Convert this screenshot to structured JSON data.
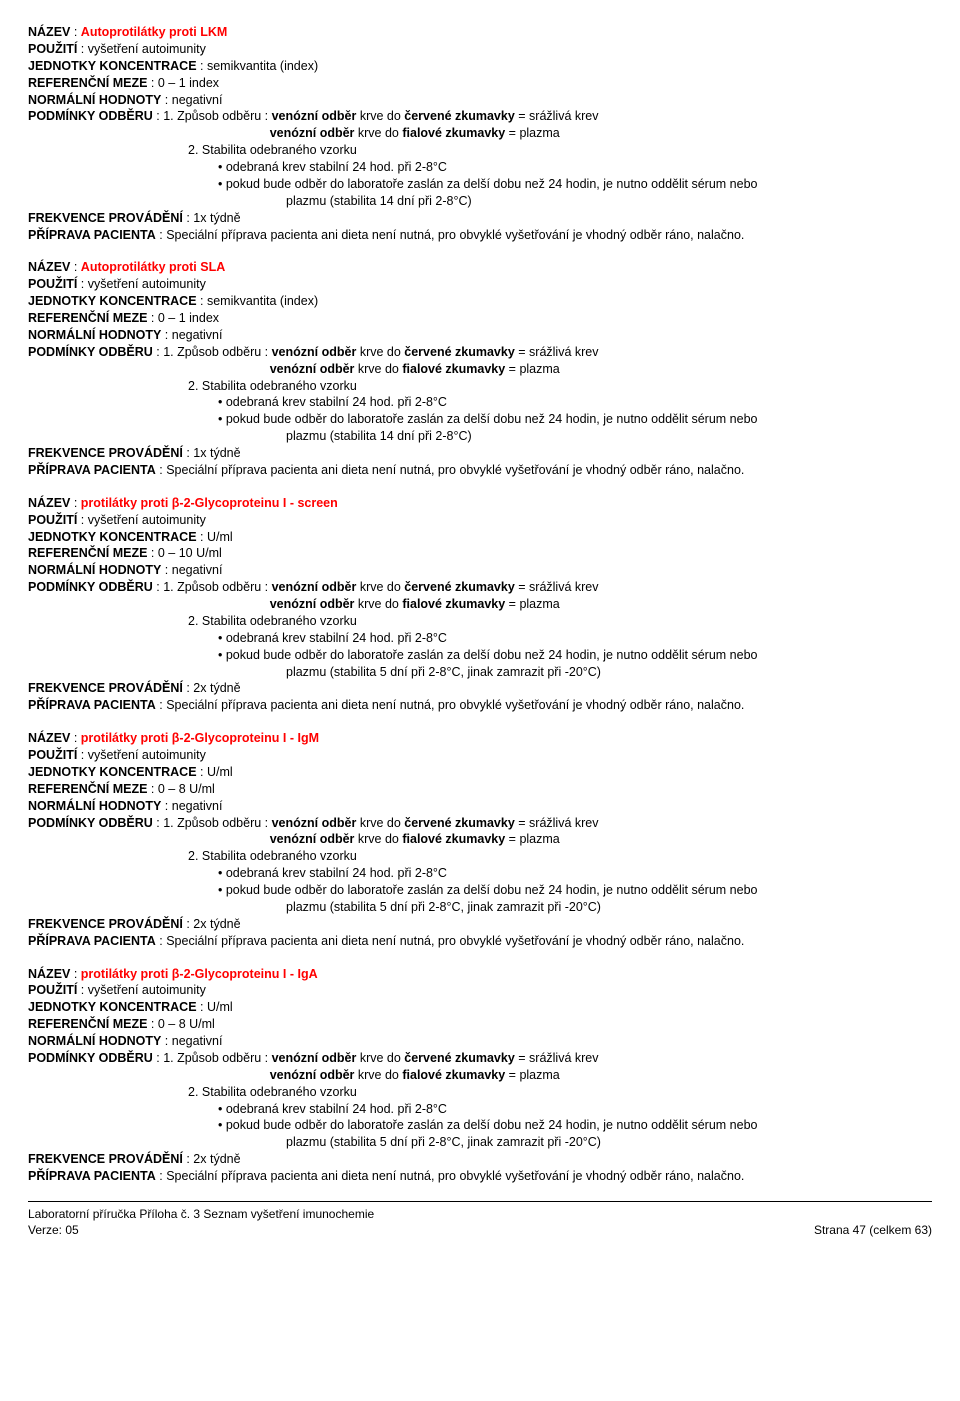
{
  "labels": {
    "nazev": "NÁZEV",
    "pouziti": "POUŽITÍ",
    "jednotky": "JEDNOTKY KONCENTRACE",
    "meze": "REFERENČNÍ MEZE",
    "hodnoty": "NORMÁLNÍ HODNOTY",
    "podminky": "PODMÍNKY ODBĚRU",
    "frekvence": "FREKVENCE PROVÁDĚNÍ",
    "priprava": "PŘÍPRAVA PACIENTA"
  },
  "shared": {
    "pouziti": "vyšetření  autoimunity",
    "hodnoty": "negativní",
    "odb_prefix": "1. Způsob odběru  :",
    "odb1_a": "venózní  odběr",
    "odb1_b": "krve do",
    "odb1_c": "červené zkumavky",
    "odb1_d": "= srážlivá krev",
    "odb2_a": "venózní  odběr",
    "odb2_b": "krve do",
    "odb2_c": "fialové  zkumavky",
    "odb2_d": "= plazma",
    "stab": "2. Stabilita odebraného vzorku",
    "stab1": "odebraná krev stabilní 24 hod. při 2-8°C",
    "stab2a": "pokud bude odběr do laboratoře zaslán za delší dobu než 24 hodin, je nutno oddělit sérum nebo",
    "stab2b_14": "plazmu (stabilita 14 dní při 2-8°C)",
    "stab2b_5": "plazmu (stabilita 5 dní při 2-8°C, jinak zamrazit při -20°C)",
    "priprava": "Speciální příprava pacienta ani dieta není nutná, pro obvyklé vyšetřování je vhodný odběr ráno, nalačno."
  },
  "entries": [
    {
      "title": "Autoprotilátky proti LKM",
      "jednotky": "semikvantita (index)",
      "meze": "0 – 1 index",
      "frekvence": "1x týdně",
      "stab2b": "stab2b_14"
    },
    {
      "title": "Autoprotilátky proti SLA",
      "jednotky": "semikvantita (index)",
      "meze": "0 – 1 index",
      "frekvence": "1x týdně",
      "stab2b": "stab2b_14"
    },
    {
      "title": "protilátky proti β-2-Glycoproteinu I  -  screen",
      "jednotky": "U/ml",
      "meze": "0 – 10 U/ml",
      "frekvence": "2x týdně",
      "stab2b": "stab2b_5"
    },
    {
      "title": "protilátky proti β-2-Glycoproteinu I  -  IgM",
      "jednotky": "U/ml",
      "meze": "0 – 8 U/ml",
      "frekvence": "2x týdně",
      "stab2b": "stab2b_5"
    },
    {
      "title": "protilátky proti β-2-Glycoproteinu I  -  IgA",
      "jednotky": "U/ml",
      "meze": "0 – 8 U/ml",
      "frekvence": "2x týdně",
      "stab2b": "stab2b_5"
    }
  ],
  "footer": {
    "left1": "Laboratorní příručka Příloha č. 3 Seznam vyšetření imunochemie",
    "left2": "Verze: 05",
    "right": "Strana 47 (celkem 63)"
  }
}
